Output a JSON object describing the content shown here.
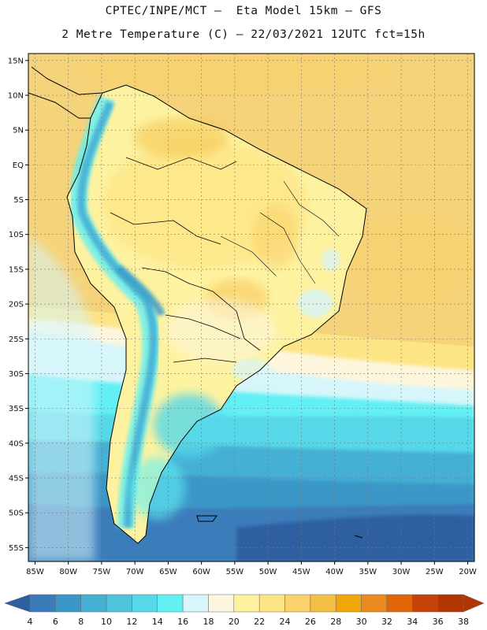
{
  "header": {
    "title_line1": "CPTEC/INPE/MCT –  Eta Model 15km – GFS",
    "title_line2": "2 Metre Temperature (C) – 22/03/2021 12UTC fct=15h"
  },
  "axes": {
    "lat_labels": [
      "15N",
      "10N",
      "5N",
      "EQ",
      "5S",
      "10S",
      "15S",
      "20S",
      "25S",
      "30S",
      "35S",
      "40S",
      "45S",
      "50S",
      "55S"
    ],
    "lon_labels": [
      "85W",
      "80W",
      "75W",
      "70W",
      "65W",
      "60W",
      "55W",
      "50W",
      "45W",
      "40W",
      "35W",
      "30W",
      "25W",
      "20W"
    ]
  },
  "colorbar": {
    "labels": [
      "4",
      "6",
      "8",
      "10",
      "12",
      "14",
      "16",
      "18",
      "20",
      "22",
      "24",
      "26",
      "28",
      "30",
      "32",
      "34",
      "36",
      "38"
    ],
    "colors": [
      "#2e5fa0",
      "#3a7cba",
      "#3b97c8",
      "#45afd4",
      "#50c4dc",
      "#56d8e8",
      "#62f0f4",
      "#d6f6fb",
      "#fdf6dd",
      "#fdf2a0",
      "#fde484",
      "#fad26c",
      "#f3be44",
      "#f1a70a",
      "#ea8a1e",
      "#de6608",
      "#c74208",
      "#b23604"
    ]
  },
  "map": {
    "region": "South America",
    "projection": "lat-lon",
    "lon_range": [
      -86,
      -19
    ],
    "lat_range": [
      -57,
      16
    ],
    "grid": true
  }
}
